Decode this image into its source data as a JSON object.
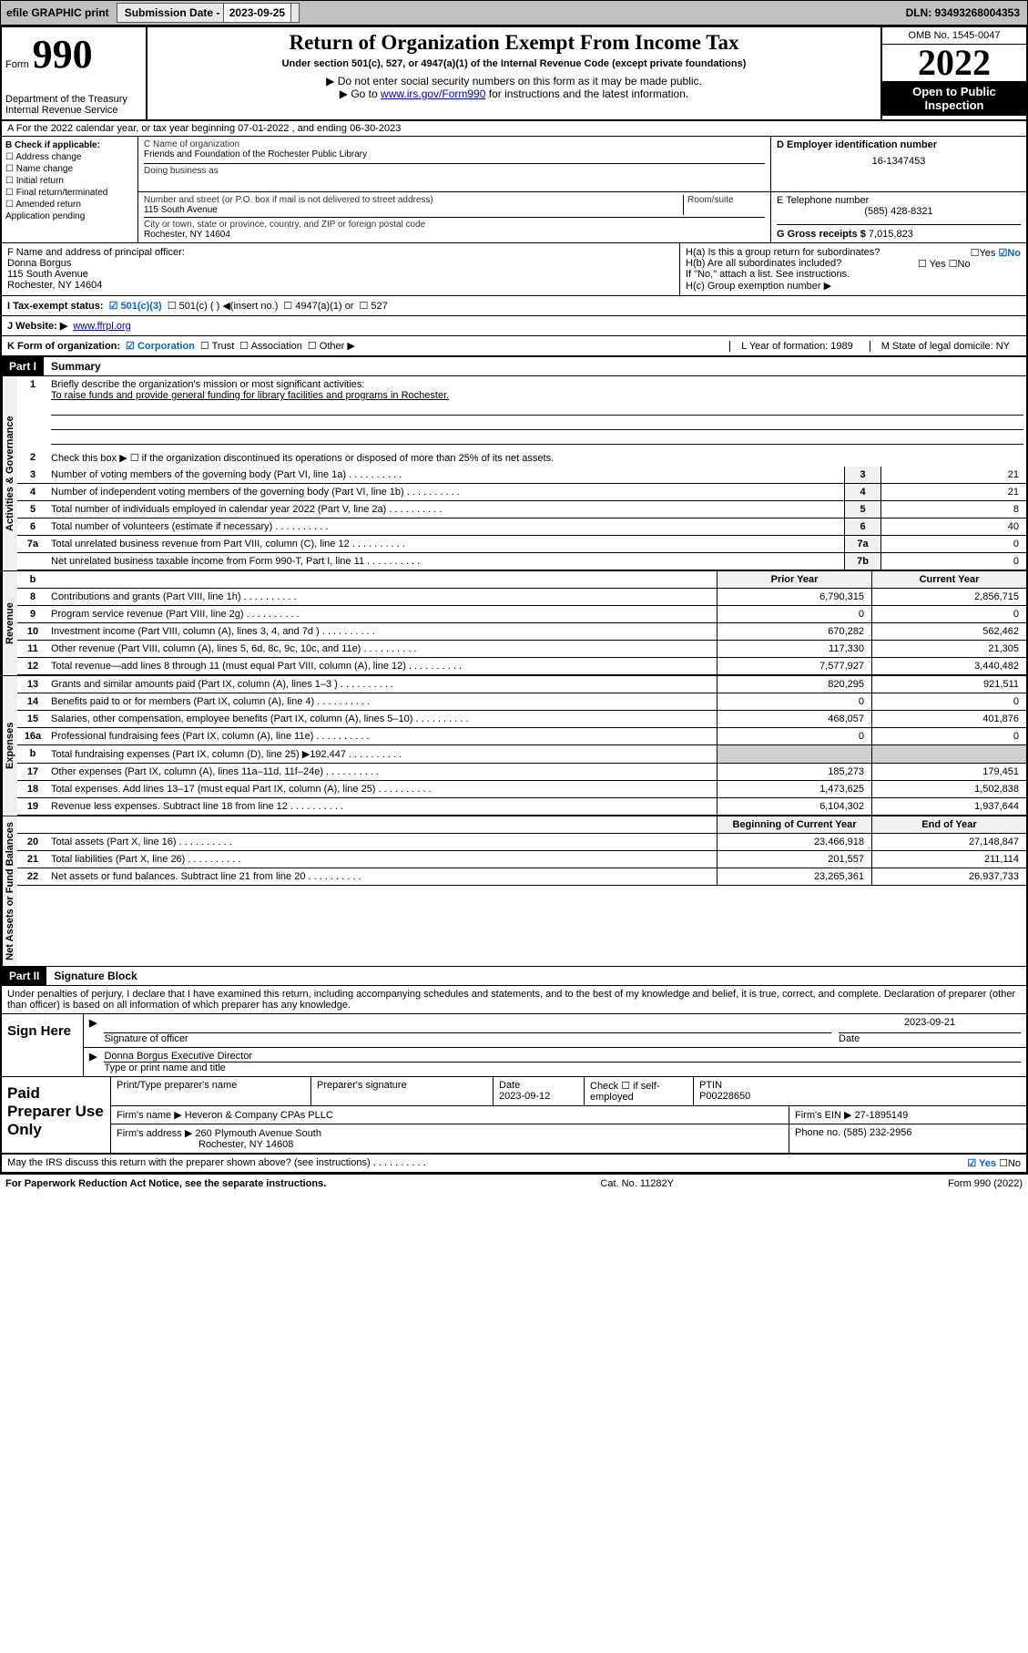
{
  "topbar": {
    "efile": "efile GRAPHIC print",
    "sub_label": "Submission Date - ",
    "sub_date": "2023-09-25",
    "dln": "DLN: 93493268004353"
  },
  "header": {
    "form_word": "Form",
    "form_num": "990",
    "dept": "Department of the Treasury",
    "irs": "Internal Revenue Service",
    "title": "Return of Organization Exempt From Income Tax",
    "subtitle": "Under section 501(c), 527, or 4947(a)(1) of the Internal Revenue Code (except private foundations)",
    "note1": "▶ Do not enter social security numbers on this form as it may be made public.",
    "note2_pre": "▶ Go to ",
    "note2_link": "www.irs.gov/Form990",
    "note2_post": " for instructions and the latest information.",
    "omb": "OMB No. 1545-0047",
    "year": "2022",
    "open_pub1": "Open to Public",
    "open_pub2": "Inspection"
  },
  "section_a": "A For the 2022 calendar year, or tax year beginning 07-01-2022   , and ending 06-30-2023",
  "col_b": {
    "label": "B Check if applicable:",
    "items": [
      "☐ Address change",
      "☐ Name change",
      "☐ Initial return",
      "☐ Final return/terminated",
      "☐ Amended return",
      "   Application pending"
    ]
  },
  "col_c": {
    "name_lbl": "C Name of organization",
    "name": "Friends and Foundation of the Rochester Public Library",
    "dba_lbl": "Doing business as",
    "addr_lbl": "Number and street (or P.O. box if mail is not delivered to street address)",
    "room_lbl": "Room/suite",
    "addr": "115 South Avenue",
    "city_lbl": "City or town, state or province, country, and ZIP or foreign postal code",
    "city": "Rochester, NY  14604"
  },
  "col_d": {
    "ein_lbl": "D Employer identification number",
    "ein": "16-1347453",
    "phone_lbl": "E Telephone number",
    "phone": "(585) 428-8321",
    "gross_lbl": "G Gross receipts $ ",
    "gross": "7,015,823"
  },
  "row_f": {
    "lbl": "F  Name and address of principal officer:",
    "name": "Donna Borgus",
    "addr": "115 South Avenue",
    "city": "Rochester, NY  14604"
  },
  "row_h": {
    "ha": "H(a)  Is this a group return for subordinates?",
    "yes": "☐Yes",
    "no_checked": "☑No",
    "hb": "H(b)  Are all subordinates included?",
    "hb_yn": "☐ Yes  ☐No",
    "hb_note": "If \"No,\" attach a list. See instructions.",
    "hc": "H(c)  Group exemption number ▶"
  },
  "row_i": {
    "lbl": "I    Tax-exempt status:",
    "c3": "☑ 501(c)(3)",
    "c": "☐   501(c) (  ) ◀(insert no.)",
    "a1": "☐  4947(a)(1) or",
    "s527": "☐  527"
  },
  "row_j": {
    "lbl": "J   Website: ▶",
    "url": "www.ffrpl.org"
  },
  "row_k": {
    "lbl": "K Form of organization:",
    "corp": "☑ Corporation",
    "trust": "☐ Trust",
    "assoc": "☐ Association",
    "other": "☐ Other ▶",
    "l": "L Year of formation: 1989",
    "m": "M State of legal domicile: NY"
  },
  "part1": {
    "hdr": "Part I",
    "lbl": "Summary",
    "q1": "Briefly describe the organization's mission or most significant activities:",
    "mission": "To raise funds and provide general funding for library facilities and programs in Rochester.",
    "q2": "Check this box ▶ ☐  if the organization discontinued its operations or disposed of more than 25% of its net assets.",
    "rows": [
      {
        "n": "3",
        "t": "Number of voting members of the governing body (Part VI, line 1a)",
        "b": "3",
        "v": "21"
      },
      {
        "n": "4",
        "t": "Number of independent voting members of the governing body (Part VI, line 1b)",
        "b": "4",
        "v": "21"
      },
      {
        "n": "5",
        "t": "Total number of individuals employed in calendar year 2022 (Part V, line 2a)",
        "b": "5",
        "v": "8"
      },
      {
        "n": "6",
        "t": "Total number of volunteers (estimate if necessary)",
        "b": "6",
        "v": "40"
      },
      {
        "n": "7a",
        "t": "Total unrelated business revenue from Part VIII, column (C), line 12",
        "b": "7a",
        "v": "0"
      },
      {
        "n": "",
        "t": "Net unrelated business taxable income from Form 990-T, Part I, line 11",
        "b": "7b",
        "v": "0"
      }
    ],
    "col_hdr": {
      "prior": "Prior Year",
      "current": "Current Year"
    },
    "rev_rows": [
      {
        "n": "8",
        "t": "Contributions and grants (Part VIII, line 1h)",
        "c1": "6,790,315",
        "c2": "2,856,715"
      },
      {
        "n": "9",
        "t": "Program service revenue (Part VIII, line 2g)",
        "c1": "0",
        "c2": "0"
      },
      {
        "n": "10",
        "t": "Investment income (Part VIII, column (A), lines 3, 4, and 7d )",
        "c1": "670,282",
        "c2": "562,462"
      },
      {
        "n": "11",
        "t": "Other revenue (Part VIII, column (A), lines 5, 6d, 8c, 9c, 10c, and 11e)",
        "c1": "117,330",
        "c2": "21,305"
      },
      {
        "n": "12",
        "t": "Total revenue—add lines 8 through 11 (must equal Part VIII, column (A), line 12)",
        "c1": "7,577,927",
        "c2": "3,440,482"
      }
    ],
    "exp_rows": [
      {
        "n": "13",
        "t": "Grants and similar amounts paid (Part IX, column (A), lines 1–3 )",
        "c1": "820,295",
        "c2": "921,511"
      },
      {
        "n": "14",
        "t": "Benefits paid to or for members (Part IX, column (A), line 4)",
        "c1": "0",
        "c2": "0"
      },
      {
        "n": "15",
        "t": "Salaries, other compensation, employee benefits (Part IX, column (A), lines 5–10)",
        "c1": "468,057",
        "c2": "401,876"
      },
      {
        "n": "16a",
        "t": "Professional fundraising fees (Part IX, column (A), line 11e)",
        "c1": "0",
        "c2": "0"
      },
      {
        "n": "b",
        "t": "Total fundraising expenses (Part IX, column (D), line 25) ▶192,447",
        "c1": "",
        "c2": ""
      },
      {
        "n": "17",
        "t": "Other expenses (Part IX, column (A), lines 11a–11d, 11f–24e)",
        "c1": "185,273",
        "c2": "179,451"
      },
      {
        "n": "18",
        "t": "Total expenses. Add lines 13–17 (must equal Part IX, column (A), line 25)",
        "c1": "1,473,625",
        "c2": "1,502,838"
      },
      {
        "n": "19",
        "t": "Revenue less expenses. Subtract line 18 from line 12",
        "c1": "6,104,302",
        "c2": "1,937,644"
      }
    ],
    "na_hdr": {
      "beg": "Beginning of Current Year",
      "end": "End of Year"
    },
    "na_rows": [
      {
        "n": "20",
        "t": "Total assets (Part X, line 16)",
        "c1": "23,466,918",
        "c2": "27,148,847"
      },
      {
        "n": "21",
        "t": "Total liabilities (Part X, line 26)",
        "c1": "201,557",
        "c2": "211,114"
      },
      {
        "n": "22",
        "t": "Net assets or fund balances. Subtract line 21 from line 20",
        "c1": "23,265,361",
        "c2": "26,937,733"
      }
    ]
  },
  "vlabels": {
    "gov": "Activities & Governance",
    "rev": "Revenue",
    "exp": "Expenses",
    "na": "Net Assets or Fund Balances"
  },
  "part2": {
    "hdr": "Part II",
    "lbl": "Signature Block",
    "decl": "Under penalties of perjury, I declare that I have examined this return, including accompanying schedules and statements, and to the best of my knowledge and belief, it is true, correct, and complete. Declaration of preparer (other than officer) is based on all information of which preparer has any knowledge."
  },
  "sign": {
    "here": "Sign Here",
    "sig_lbl": "Signature of officer",
    "date_lbl": "Date",
    "date": "2023-09-21",
    "name": "Donna Borgus  Executive Director",
    "name_lbl": "Type or print name and title"
  },
  "paid": {
    "lbl": "Paid Preparer Use Only",
    "p1": "Print/Type preparer's name",
    "p2": "Preparer's signature",
    "p3_lbl": "Date",
    "p3": "2023-09-12",
    "p4_lbl": "Check ☐ if self-employed",
    "p5_lbl": "PTIN",
    "p5": "P00228650",
    "firm_lbl": "Firm's name    ▶",
    "firm": "Heveron & Company CPAs PLLC",
    "ein_lbl": "Firm's EIN ▶",
    "ein": "27-1895149",
    "addr_lbl": "Firm's address ▶",
    "addr1": "260 Plymouth Avenue South",
    "addr2": "Rochester, NY  14608",
    "phone_lbl": "Phone no.",
    "phone": "(585) 232-2956"
  },
  "discuss": {
    "q": "May the IRS discuss this return with the preparer shown above? (see instructions)",
    "yes": "☑ Yes",
    "no": "☐No"
  },
  "footer": {
    "left": "For Paperwork Reduction Act Notice, see the separate instructions.",
    "mid": "Cat. No. 11282Y",
    "right": "Form 990 (2022)"
  }
}
